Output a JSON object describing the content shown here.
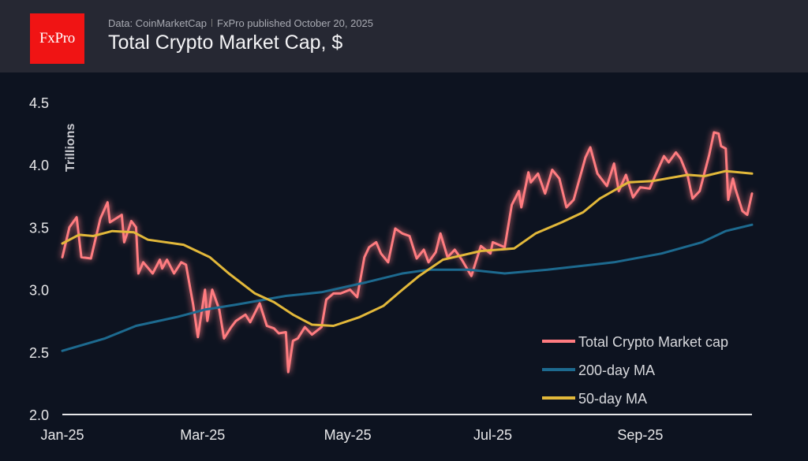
{
  "header": {
    "logo_text": "FxPro",
    "source": "Data: CoinMarketCap",
    "published": "FxPro published October 20, 2025",
    "title": "Total Crypto Market Cap, $"
  },
  "chart_data": {
    "type": "line",
    "title": "Total Crypto Market Cap, $",
    "ylabel": "Trillions",
    "xlabel": "",
    "ylim": [
      2.0,
      4.5
    ],
    "xlim": [
      "2025-01-01",
      "2025-10-18"
    ],
    "yticks": [
      "2.0",
      "2.5",
      "3.0",
      "3.5",
      "4.0",
      "4.5"
    ],
    "xticks": [
      {
        "date": "2025-01-01",
        "label": "Jan-25"
      },
      {
        "date": "2025-03-01",
        "label": "Mar-25"
      },
      {
        "date": "2025-05-01",
        "label": "May-25"
      },
      {
        "date": "2025-07-01",
        "label": "Jul-25"
      },
      {
        "date": "2025-09-01",
        "label": "Sep-25"
      }
    ],
    "grid": false,
    "legend_position": "bottom-right",
    "background": "#0d1320",
    "series": [
      {
        "name": "Total Crypto Market cap",
        "color": "#ff7b80",
        "points": [
          [
            "2025-01-01",
            3.26
          ],
          [
            "2025-01-04",
            3.5
          ],
          [
            "2025-01-07",
            3.58
          ],
          [
            "2025-01-09",
            3.26
          ],
          [
            "2025-01-13",
            3.25
          ],
          [
            "2025-01-17",
            3.57
          ],
          [
            "2025-01-20",
            3.7
          ],
          [
            "2025-01-21",
            3.54
          ],
          [
            "2025-01-26",
            3.6
          ],
          [
            "2025-01-27",
            3.38
          ],
          [
            "2025-01-30",
            3.55
          ],
          [
            "2025-02-01",
            3.5
          ],
          [
            "2025-02-02",
            3.13
          ],
          [
            "2025-02-04",
            3.22
          ],
          [
            "2025-02-08",
            3.13
          ],
          [
            "2025-02-11",
            3.24
          ],
          [
            "2025-02-12",
            3.17
          ],
          [
            "2025-02-14",
            3.24
          ],
          [
            "2025-02-17",
            3.13
          ],
          [
            "2025-02-20",
            3.22
          ],
          [
            "2025-02-22",
            3.2
          ],
          [
            "2025-02-25",
            2.88
          ],
          [
            "2025-02-27",
            2.62
          ],
          [
            "2025-03-02",
            3.0
          ],
          [
            "2025-03-03",
            2.75
          ],
          [
            "2025-03-05",
            3.0
          ],
          [
            "2025-03-08",
            2.84
          ],
          [
            "2025-03-10",
            2.61
          ],
          [
            "2025-03-13",
            2.7
          ],
          [
            "2025-03-15",
            2.75
          ],
          [
            "2025-03-19",
            2.8
          ],
          [
            "2025-03-21",
            2.74
          ],
          [
            "2025-03-25",
            2.89
          ],
          [
            "2025-03-28",
            2.71
          ],
          [
            "2025-03-31",
            2.69
          ],
          [
            "2025-04-02",
            2.65
          ],
          [
            "2025-04-05",
            2.66
          ],
          [
            "2025-04-06",
            2.34
          ],
          [
            "2025-04-08",
            2.59
          ],
          [
            "2025-04-10",
            2.61
          ],
          [
            "2025-04-13",
            2.7
          ],
          [
            "2025-04-16",
            2.64
          ],
          [
            "2025-04-20",
            2.7
          ],
          [
            "2025-04-22",
            2.92
          ],
          [
            "2025-04-25",
            2.97
          ],
          [
            "2025-04-28",
            2.97
          ],
          [
            "2025-05-02",
            3.0
          ],
          [
            "2025-05-05",
            2.94
          ],
          [
            "2025-05-08",
            3.26
          ],
          [
            "2025-05-10",
            3.34
          ],
          [
            "2025-05-13",
            3.38
          ],
          [
            "2025-05-15",
            3.29
          ],
          [
            "2025-05-18",
            3.22
          ],
          [
            "2025-05-21",
            3.49
          ],
          [
            "2025-05-24",
            3.45
          ],
          [
            "2025-05-27",
            3.43
          ],
          [
            "2025-05-30",
            3.25
          ],
          [
            "2025-06-02",
            3.32
          ],
          [
            "2025-06-04",
            3.22
          ],
          [
            "2025-06-07",
            3.3
          ],
          [
            "2025-06-09",
            3.45
          ],
          [
            "2025-06-12",
            3.26
          ],
          [
            "2025-06-15",
            3.32
          ],
          [
            "2025-06-18",
            3.24
          ],
          [
            "2025-06-22",
            3.11
          ],
          [
            "2025-06-26",
            3.35
          ],
          [
            "2025-06-30",
            3.29
          ],
          [
            "2025-07-01",
            3.38
          ],
          [
            "2025-07-06",
            3.34
          ],
          [
            "2025-07-09",
            3.68
          ],
          [
            "2025-07-12",
            3.79
          ],
          [
            "2025-07-13",
            3.66
          ],
          [
            "2025-07-16",
            3.94
          ],
          [
            "2025-07-17",
            3.86
          ],
          [
            "2025-07-20",
            3.93
          ],
          [
            "2025-07-23",
            3.77
          ],
          [
            "2025-07-26",
            3.96
          ],
          [
            "2025-07-29",
            3.89
          ],
          [
            "2025-08-01",
            3.66
          ],
          [
            "2025-08-04",
            3.72
          ],
          [
            "2025-08-09",
            4.06
          ],
          [
            "2025-08-11",
            4.14
          ],
          [
            "2025-08-14",
            3.93
          ],
          [
            "2025-08-18",
            3.83
          ],
          [
            "2025-08-21",
            4.01
          ],
          [
            "2025-08-23",
            3.79
          ],
          [
            "2025-08-26",
            3.92
          ],
          [
            "2025-08-29",
            3.74
          ],
          [
            "2025-09-01",
            3.82
          ],
          [
            "2025-09-05",
            3.81
          ],
          [
            "2025-09-07",
            3.9
          ],
          [
            "2025-09-11",
            4.07
          ],
          [
            "2025-09-13",
            4.02
          ],
          [
            "2025-09-16",
            4.1
          ],
          [
            "2025-09-18",
            4.05
          ],
          [
            "2025-09-21",
            3.91
          ],
          [
            "2025-09-23",
            3.73
          ],
          [
            "2025-09-26",
            3.79
          ],
          [
            "2025-09-30",
            4.08
          ],
          [
            "2025-10-02",
            4.26
          ],
          [
            "2025-10-04",
            4.25
          ],
          [
            "2025-10-05",
            4.15
          ],
          [
            "2025-10-07",
            4.13
          ],
          [
            "2025-10-08",
            3.72
          ],
          [
            "2025-10-10",
            3.89
          ],
          [
            "2025-10-11",
            3.81
          ],
          [
            "2025-10-14",
            3.63
          ],
          [
            "2025-10-16",
            3.6
          ],
          [
            "2025-10-18",
            3.77
          ]
        ]
      },
      {
        "name": "200-day MA",
        "color": "#1d6a8f",
        "points": [
          [
            "2025-01-01",
            2.51
          ],
          [
            "2025-01-19",
            2.61
          ],
          [
            "2025-02-01",
            2.71
          ],
          [
            "2025-02-18",
            2.78
          ],
          [
            "2025-03-02",
            2.84
          ],
          [
            "2025-03-15",
            2.88
          ],
          [
            "2025-04-05",
            2.95
          ],
          [
            "2025-04-20",
            2.98
          ],
          [
            "2025-05-09",
            3.06
          ],
          [
            "2025-05-24",
            3.13
          ],
          [
            "2025-06-04",
            3.16
          ],
          [
            "2025-06-21",
            3.16
          ],
          [
            "2025-07-06",
            3.13
          ],
          [
            "2025-07-24",
            3.16
          ],
          [
            "2025-08-21",
            3.22
          ],
          [
            "2025-09-10",
            3.29
          ],
          [
            "2025-09-27",
            3.38
          ],
          [
            "2025-10-07",
            3.47
          ],
          [
            "2025-10-18",
            3.52
          ]
        ]
      },
      {
        "name": "50-day MA",
        "color": "#e2b83a",
        "points": [
          [
            "2025-01-01",
            3.37
          ],
          [
            "2025-01-08",
            3.44
          ],
          [
            "2025-01-14",
            3.43
          ],
          [
            "2025-01-22",
            3.47
          ],
          [
            "2025-01-31",
            3.46
          ],
          [
            "2025-02-06",
            3.4
          ],
          [
            "2025-02-21",
            3.36
          ],
          [
            "2025-03-04",
            3.26
          ],
          [
            "2025-03-12",
            3.13
          ],
          [
            "2025-03-23",
            2.97
          ],
          [
            "2025-03-31",
            2.9
          ],
          [
            "2025-04-08",
            2.8
          ],
          [
            "2025-04-16",
            2.72
          ],
          [
            "2025-04-25",
            2.71
          ],
          [
            "2025-05-06",
            2.78
          ],
          [
            "2025-05-16",
            2.87
          ],
          [
            "2025-05-24",
            3.0
          ],
          [
            "2025-05-31",
            3.11
          ],
          [
            "2025-06-10",
            3.24
          ],
          [
            "2025-06-26",
            3.31
          ],
          [
            "2025-07-10",
            3.33
          ],
          [
            "2025-07-19",
            3.45
          ],
          [
            "2025-07-30",
            3.54
          ],
          [
            "2025-08-08",
            3.62
          ],
          [
            "2025-08-15",
            3.73
          ],
          [
            "2025-08-27",
            3.86
          ],
          [
            "2025-09-06",
            3.87
          ],
          [
            "2025-09-21",
            3.92
          ],
          [
            "2025-09-28",
            3.91
          ],
          [
            "2025-10-07",
            3.95
          ],
          [
            "2025-10-18",
            3.93
          ]
        ]
      }
    ]
  }
}
